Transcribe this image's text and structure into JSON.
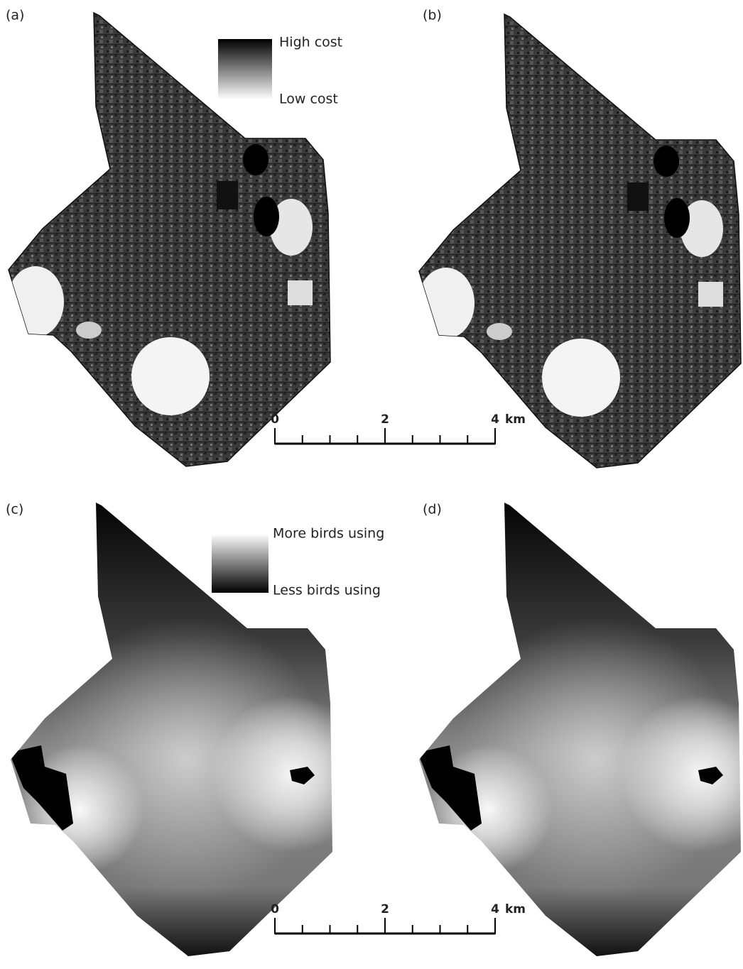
{
  "panels": [
    {
      "label": "(a)"
    },
    {
      "label": "(b)"
    },
    {
      "label": "(c)"
    },
    {
      "label": "(d)"
    }
  ],
  "legends": [
    {
      "high": "High cost",
      "low": "Low cost"
    },
    {
      "high": "More birds using",
      "low": "Less birds using"
    }
  ],
  "scale_bars": [
    {
      "ticks": [
        0,
        2,
        4
      ],
      "unit": "km"
    },
    {
      "ticks": [
        0,
        2,
        4
      ],
      "unit": "km"
    }
  ]
}
